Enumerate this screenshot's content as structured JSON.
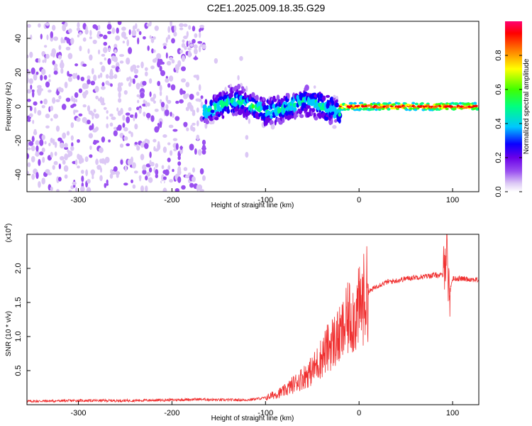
{
  "figure_title": "C2E1.2025.009.18.35.G29",
  "chart_data": [
    {
      "type": "heatmap",
      "xlabel": "Height of straight line (km)",
      "ylabel": "Frequency (Hz)",
      "xlim": [
        -355,
        128
      ],
      "ylim": [
        -50,
        50
      ],
      "x_ticks": [
        -300,
        -200,
        -100,
        0,
        100
      ],
      "y_ticks": [
        -40,
        -20,
        0,
        20,
        40
      ],
      "colorbar": {
        "label": "Normalized spectral amplitude",
        "range": [
          0,
          1
        ],
        "ticks": [
          "0.0",
          "0.2",
          "0.4",
          "0.6",
          "0.8"
        ],
        "tick_values": [
          0,
          0.2,
          0.4,
          0.6,
          0.8
        ],
        "colors": [
          "#ffffff",
          "#dcc8f5",
          "#9a50f0",
          "#6a00e8",
          "#0a00ff",
          "#00c8ff",
          "#00ff80",
          "#40ff00",
          "#ffff00",
          "#ff7000",
          "#ff0000",
          "#ff0070"
        ]
      },
      "regions": [
        {
          "x_range": [
            -355,
            -165
          ],
          "freq_spread": 50,
          "intensity": 0.15
        },
        {
          "x_range": [
            -165,
            -120
          ],
          "freq_spread": 45,
          "intensity": 0.05
        },
        {
          "x_range": [
            -165,
            -20
          ],
          "freq_spread": 10,
          "intensity": 0.45
        },
        {
          "x_range": [
            -20,
            128
          ],
          "freq_spread": 2,
          "intensity": 0.95
        }
      ]
    },
    {
      "type": "line",
      "xlabel": "Height of straight line (km)",
      "ylabel": "SNR (10 * v/v)",
      "y_multiplier": "(x10",
      "y_multiplier_exp": "4",
      "y_multiplier_close": ")",
      "xlim": [
        -355,
        128
      ],
      "ylim": [
        0,
        2.5
      ],
      "x_ticks": [
        -300,
        -200,
        -100,
        0,
        100
      ],
      "y_ticks": [
        "0.5",
        "1.0",
        "1.5",
        "2.0"
      ],
      "y_tick_values": [
        0.5,
        1.0,
        1.5,
        2.0
      ],
      "line_color": "#f03030",
      "x": [
        -355,
        -300,
        -250,
        -200,
        -170,
        -150,
        -120,
        -100,
        -80,
        -60,
        -50,
        -40,
        -30,
        -20,
        -10,
        -5,
        0,
        5,
        10,
        20,
        30,
        40,
        50,
        60,
        70,
        80,
        90,
        94,
        96,
        100,
        110,
        128
      ],
      "y": [
        0.05,
        0.06,
        0.06,
        0.07,
        0.08,
        0.07,
        0.07,
        0.1,
        0.2,
        0.4,
        0.5,
        0.7,
        0.9,
        1.0,
        1.3,
        1.3,
        1.4,
        1.55,
        1.65,
        1.75,
        1.8,
        1.82,
        1.85,
        1.87,
        1.88,
        1.9,
        1.9,
        2.4,
        1.6,
        1.85,
        1.85,
        1.83
      ]
    }
  ]
}
